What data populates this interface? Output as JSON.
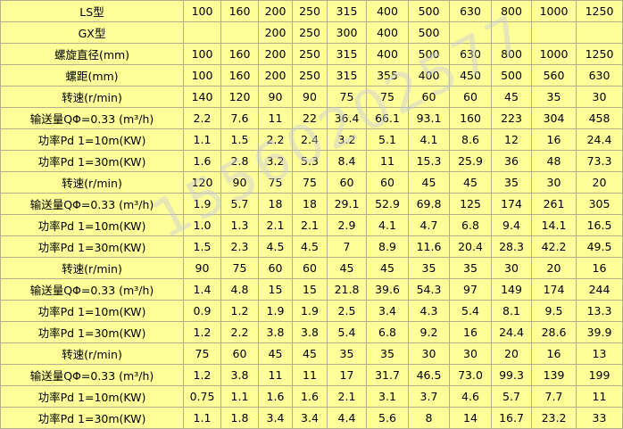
{
  "table": {
    "rows": [
      [
        "LS型",
        "100",
        "160",
        "200",
        "250",
        "315",
        "400",
        "500",
        "630",
        "800",
        "1000",
        "1250"
      ],
      [
        "GX型",
        null,
        null,
        "200",
        "250",
        "300",
        "400",
        "500",
        null,
        null,
        null,
        null
      ],
      [
        "螺旋直径(mm)",
        "100",
        "160",
        "200",
        "250",
        "315",
        "400",
        "500",
        "630",
        "800",
        "1000",
        "1250"
      ],
      [
        "螺距(mm)",
        "100",
        "160",
        "200",
        "250",
        "315",
        "355",
        "400",
        "450",
        "500",
        "560",
        "630"
      ],
      [
        "转速(r/min)",
        "140",
        "120",
        "90",
        "90",
        "75",
        "75",
        "60",
        "60",
        "45",
        "35",
        "30"
      ],
      [
        "输送量QΦ=0.33 (m³/h)",
        "2.2",
        "7.6",
        "11",
        "22",
        "36.4",
        "66.1",
        "93.1",
        "160",
        "223",
        "304",
        "458"
      ],
      [
        "功率Pd 1=10m(KW)",
        "1.1",
        "1.5",
        "2.2",
        "2.4",
        "3.2",
        "5.1",
        "4.1",
        "8.6",
        "12",
        "16",
        "24.4"
      ],
      [
        "功率Pd 1=30m(KW)",
        "1.6",
        "2.8",
        "3.2",
        "5.3",
        "8.4",
        "11",
        "15.3",
        "25.9",
        "36",
        "48",
        "73.3"
      ],
      [
        "转速(r/min)",
        "120",
        "90",
        "75",
        "75",
        "60",
        "60",
        "45",
        "45",
        "35",
        "30",
        "20"
      ],
      [
        "输送量QΦ=0.33 (m³/h)",
        "1.9",
        "5.7",
        "18",
        "18",
        "29.1",
        "52.9",
        "69.8",
        "125",
        "174",
        "261",
        "305"
      ],
      [
        "功率Pd 1=10m(KW)",
        "1.0",
        "1.3",
        "2.1",
        "2.1",
        "2.9",
        "4.1",
        "4.7",
        "6.8",
        "9.4",
        "14.1",
        "16.5"
      ],
      [
        "功率Pd 1=30m(KW)",
        "1.5",
        "2.3",
        "4.5",
        "4.5",
        "7",
        "8.9",
        "11.6",
        "20.4",
        "28.3",
        "42.2",
        "49.5"
      ],
      [
        "转速(r/min)",
        "90",
        "75",
        "60",
        "60",
        "45",
        "45",
        "35",
        "35",
        "30",
        "20",
        "16"
      ],
      [
        "输送量QΦ=0.33 (m³/h)",
        "1.4",
        "4.8",
        "15",
        "15",
        "21.8",
        "39.6",
        "54.3",
        "97",
        "149",
        "174",
        "244"
      ],
      [
        "功率Pd 1=10m(KW)",
        "0.9",
        "1.2",
        "1.9",
        "1.9",
        "2.5",
        "3.4",
        "4.3",
        "5.4",
        "8.1",
        "9.5",
        "13.3"
      ],
      [
        "功率Pd 1=30m(KW)",
        "1.2",
        "2.2",
        "3.8",
        "3.8",
        "5.4",
        "6.8",
        "9.2",
        "16",
        "24.4",
        "28.6",
        "39.9"
      ],
      [
        "转速(r/min)",
        "75",
        "60",
        "45",
        "45",
        "35",
        "35",
        "30",
        "30",
        "20",
        "16",
        "13"
      ],
      [
        "输送量QΦ=0.33 (m³/h)",
        "1.2",
        "3.8",
        "11",
        "11",
        "17",
        "31.7",
        "46.5",
        "73.0",
        "99.3",
        "139",
        "199"
      ],
      [
        "功率Pd 1=10m(KW)",
        "0.75",
        "1.1",
        "1.6",
        "1.6",
        "2.1",
        "3.1",
        "3.7",
        "4.6",
        "5.7",
        "7.7",
        "11"
      ],
      [
        "功率Pd 1=30m(KW)",
        "1.1",
        "1.8",
        "3.4",
        "3.4",
        "4.4",
        "5.6",
        "8",
        "14",
        "16.7",
        "23.2",
        "33"
      ]
    ]
  },
  "watermark": "15560202577"
}
